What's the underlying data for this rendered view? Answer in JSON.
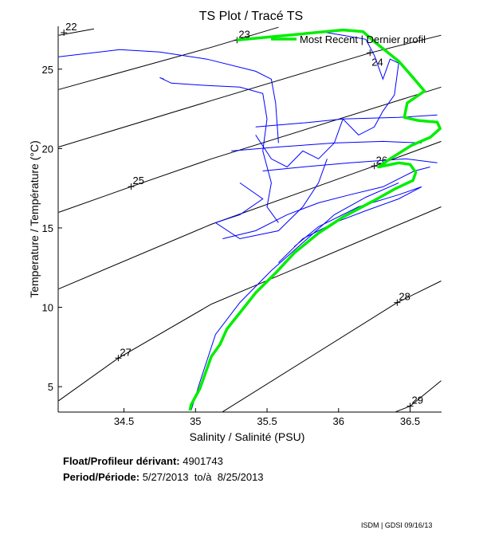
{
  "chart_data": {
    "type": "line",
    "title": "TS Plot / Tracé TS",
    "xlabel": "Salinity / Salinité (PSU)",
    "ylabel": "Temperature / Température (°C)",
    "xlim": [
      34.04,
      36.72
    ],
    "ylim": [
      3.4,
      27.7
    ],
    "xticks": [
      34.5,
      35,
      35.5,
      36,
      36.5
    ],
    "xtick_labels": [
      "34.5",
      "35",
      "35.5",
      "36",
      "36.5"
    ],
    "yticks": [
      5,
      10,
      15,
      20,
      25
    ],
    "ytick_labels": [
      "5",
      "10",
      "15",
      "20",
      "25"
    ],
    "grid": false,
    "legend": {
      "placement": "top-right",
      "label": "Most Recent | Dernier profil"
    },
    "colors": {
      "history": "#0000ff",
      "most_recent": "#00ee00",
      "isopycnal": "#000000"
    },
    "isopycnals": [
      {
        "label": "22",
        "label_at": [
          34.08,
          27.3
        ],
        "points": [
          [
            34.044,
            27.14
          ],
          [
            34.29,
            27.54
          ]
        ]
      },
      {
        "label": "23",
        "label_at": [
          35.29,
          26.83
        ],
        "points": [
          [
            34.044,
            23.72
          ],
          [
            35.111,
            26.38
          ],
          [
            35.58,
            27.64
          ]
        ]
      },
      {
        "label": "24",
        "label_at": [
          36.22,
          26.03
        ],
        "points": [
          [
            34.044,
            20.1
          ],
          [
            35.111,
            23.02
          ],
          [
            36.222,
            26.03
          ],
          [
            36.717,
            27.14
          ]
        ]
      },
      {
        "label": "25",
        "label_at": [
          34.55,
          17.6
        ],
        "points": [
          [
            34.044,
            15.98
          ],
          [
            34.55,
            17.6
          ],
          [
            35.111,
            19.35
          ],
          [
            36.717,
            23.87
          ]
        ]
      },
      {
        "label": "26",
        "label_at": [
          36.25,
          18.9
        ],
        "points": [
          [
            34.044,
            11.16
          ],
          [
            35.111,
            15.23
          ],
          [
            36.25,
            18.9
          ],
          [
            36.717,
            20.45
          ]
        ]
      },
      {
        "label": "27",
        "label_at": [
          34.46,
          6.8
        ],
        "points": [
          [
            34.044,
            4.12
          ],
          [
            34.46,
            6.8
          ],
          [
            35.111,
            10.2
          ],
          [
            36.717,
            16.33
          ]
        ]
      },
      {
        "label": "28",
        "label_at": [
          36.41,
          10.3
        ],
        "points": [
          [
            35.19,
            3.42
          ],
          [
            36.41,
            10.3
          ],
          [
            36.717,
            11.66
          ]
        ]
      },
      {
        "label": "29",
        "label_at": [
          36.5,
          3.77
        ],
        "points": [
          [
            36.4,
            3.42
          ],
          [
            36.5,
            3.77
          ],
          [
            36.717,
            5.38
          ]
        ]
      }
    ],
    "history_profiles": [
      [
        [
          34.044,
          25.78
        ],
        [
          34.47,
          26.23
        ],
        [
          34.75,
          26.08
        ],
        [
          35.08,
          25.63
        ],
        [
          35.42,
          24.87
        ],
        [
          35.53,
          24.37
        ],
        [
          35.56,
          22.86
        ],
        [
          35.58,
          20.35
        ]
      ],
      [
        [
          34.78,
          24.37
        ],
        [
          34.75,
          24.47
        ],
        [
          34.83,
          24.12
        ],
        [
          35.08,
          23.97
        ],
        [
          35.31,
          23.87
        ],
        [
          35.47,
          23.47
        ],
        [
          35.5,
          21.86
        ],
        [
          35.47,
          19.85
        ],
        [
          35.53,
          17.84
        ],
        [
          35.5,
          16.33
        ],
        [
          35.58,
          15.33
        ]
      ],
      [
        [
          35.86,
          27.39
        ],
        [
          36.03,
          27.14
        ],
        [
          36.19,
          26.88
        ],
        [
          36.25,
          25.88
        ],
        [
          36.31,
          24.37
        ],
        [
          36.36,
          25.63
        ],
        [
          36.42,
          25.38
        ],
        [
          36.39,
          23.37
        ],
        [
          36.31,
          22.36
        ],
        [
          36.25,
          21.36
        ],
        [
          36.14,
          20.85
        ],
        [
          36.03,
          21.86
        ],
        [
          35.97,
          20.35
        ],
        [
          35.86,
          19.35
        ],
        [
          35.75,
          19.85
        ],
        [
          35.64,
          18.84
        ],
        [
          35.53,
          19.35
        ],
        [
          35.42,
          20.85
        ]
      ],
      [
        [
          35.42,
          21.36
        ],
        [
          35.75,
          21.61
        ],
        [
          36.03,
          21.86
        ],
        [
          36.42,
          21.96
        ],
        [
          36.69,
          22.11
        ]
      ],
      [
        [
          35.25,
          19.85
        ],
        [
          35.58,
          20.1
        ],
        [
          35.97,
          20.35
        ],
        [
          36.31,
          20.45
        ],
        [
          36.58,
          20.35
        ]
      ],
      [
        [
          35.47,
          18.59
        ],
        [
          35.75,
          18.84
        ],
        [
          36.08,
          19.1
        ],
        [
          36.47,
          19.35
        ],
        [
          36.69,
          19.1
        ]
      ],
      [
        [
          35.19,
          14.32
        ],
        [
          35.42,
          14.82
        ],
        [
          35.64,
          15.83
        ],
        [
          35.86,
          16.58
        ],
        [
          36.08,
          17.09
        ],
        [
          36.31,
          17.59
        ],
        [
          36.53,
          18.59
        ],
        [
          36.64,
          18.84
        ]
      ],
      [
        [
          35.58,
          12.81
        ],
        [
          35.75,
          14.32
        ],
        [
          35.97,
          15.33
        ],
        [
          36.19,
          16.08
        ],
        [
          36.42,
          16.83
        ],
        [
          36.58,
          17.59
        ],
        [
          36.42,
          17.09
        ],
        [
          36.14,
          16.33
        ],
        [
          35.86,
          15.08
        ],
        [
          35.69,
          13.82
        ]
      ],
      [
        [
          34.97,
          3.52
        ],
        [
          35.03,
          5.28
        ],
        [
          35.14,
          8.29
        ],
        [
          35.31,
          10.3
        ],
        [
          35.53,
          12.31
        ],
        [
          35.75,
          14.07
        ],
        [
          35.97,
          15.83
        ],
        [
          36.19,
          16.93
        ],
        [
          36.42,
          17.84
        ]
      ],
      [
        [
          35.31,
          17.84
        ],
        [
          35.47,
          16.83
        ],
        [
          35.31,
          15.83
        ],
        [
          35.14,
          15.33
        ],
        [
          35.31,
          14.32
        ],
        [
          35.58,
          14.82
        ],
        [
          35.75,
          16.33
        ],
        [
          35.86,
          17.84
        ],
        [
          35.92,
          19.35
        ]
      ]
    ],
    "most_recent_profile": [
      [
        35.29,
        26.83
      ],
      [
        36.03,
        27.47
      ],
      [
        36.17,
        27.37
      ],
      [
        36.25,
        26.73
      ],
      [
        36.42,
        25.5
      ],
      [
        36.47,
        25.0
      ],
      [
        36.53,
        24.37
      ],
      [
        36.6,
        23.62
      ],
      [
        36.48,
        22.87
      ],
      [
        36.46,
        21.96
      ],
      [
        36.56,
        21.76
      ],
      [
        36.69,
        21.66
      ],
      [
        36.71,
        21.26
      ],
      [
        36.64,
        20.7
      ],
      [
        36.51,
        20.2
      ],
      [
        36.36,
        19.35
      ],
      [
        36.28,
        18.84
      ],
      [
        36.42,
        19.1
      ],
      [
        36.5,
        19.0
      ],
      [
        36.54,
        18.5
      ],
      [
        36.52,
        17.99
      ],
      [
        36.4,
        17.49
      ],
      [
        36.27,
        16.83
      ],
      [
        36.03,
        15.68
      ],
      [
        35.86,
        14.67
      ],
      [
        35.69,
        13.42
      ],
      [
        35.56,
        12.16
      ],
      [
        35.42,
        10.91
      ],
      [
        35.31,
        9.65
      ],
      [
        35.22,
        8.64
      ],
      [
        35.17,
        7.64
      ],
      [
        35.11,
        6.89
      ],
      [
        35.07,
        5.88
      ],
      [
        35.03,
        4.87
      ],
      [
        34.97,
        3.87
      ],
      [
        34.96,
        3.5
      ]
    ]
  },
  "info": {
    "float_label": "Float/Profileur dérivant:",
    "float_id": "4901743",
    "period_label": "Period/Période:",
    "start_date": "5/27/2013",
    "to_label": "to/à",
    "end_date": "8/25/2013"
  },
  "footer": "ISDM | GDSI  09/16/13"
}
